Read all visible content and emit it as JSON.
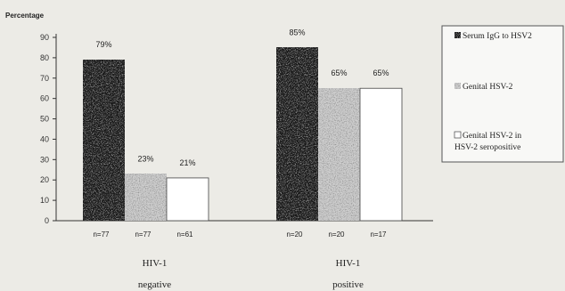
{
  "chart_data": {
    "type": "bar",
    "ylabel": "Percentage",
    "ylim": [
      0,
      90
    ],
    "yticks": [
      0,
      10,
      20,
      30,
      40,
      50,
      60,
      70,
      80,
      90
    ],
    "groups": [
      {
        "label_line1": "HIV-1",
        "label_line2": "negative"
      },
      {
        "label_line1": "HIV-1",
        "label_line2": "positive"
      }
    ],
    "series": [
      {
        "name": "Serum IgG to HSV2",
        "values": [
          79,
          85
        ],
        "value_labels": [
          "79%",
          "85%"
        ],
        "n_labels": [
          "n=77",
          "n=20"
        ],
        "pattern": "dark-speckle"
      },
      {
        "name": "Genital HSV-2",
        "values": [
          23,
          65
        ],
        "value_labels": [
          "23%",
          "65%"
        ],
        "n_labels": [
          "n=77",
          "n=20"
        ],
        "pattern": "light-speckle"
      },
      {
        "name_line1": "Genital HSV-2 in",
        "name_line2": "HSV-2 seropositive",
        "values": [
          21,
          65
        ],
        "value_labels": [
          "21%",
          "65%"
        ],
        "n_labels": [
          "n=61",
          "n=17"
        ],
        "pattern": "white"
      }
    ],
    "legend_position": "right",
    "grid": false
  }
}
